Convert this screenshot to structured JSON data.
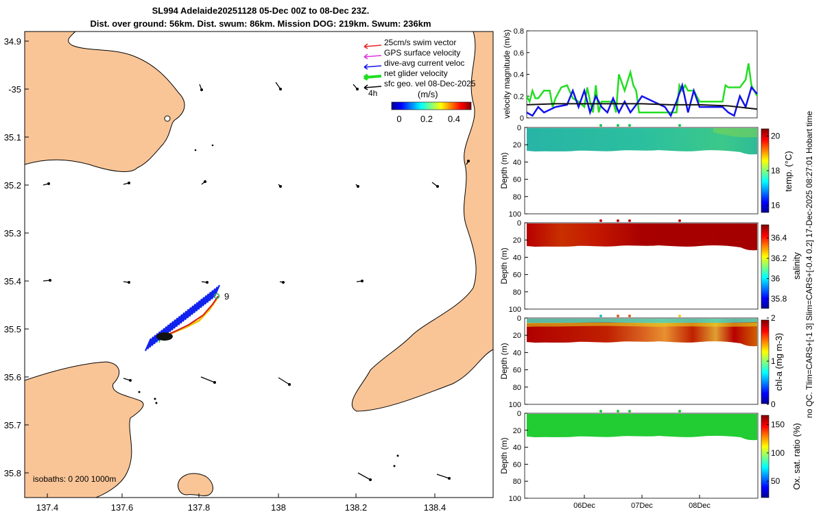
{
  "title_line1": "SL994 Adelaide20251128 05-Dec 00Z to 08-Dec 23Z.",
  "title_line2": "Dist. over ground: 56km. Dist. swum: 86km. Mission DOG: 219km. Swum: 236km",
  "map": {
    "lon_ticks": [
      "137.4",
      "137.6",
      "137.8",
      "138",
      "138.2",
      "138.4"
    ],
    "lat_ticks": [
      "34.9",
      "-35",
      "35.1",
      "35.2",
      "35.3",
      "35.4",
      "35.5",
      "35.6",
      "35.7",
      "35.8"
    ],
    "legend": [
      {
        "label": "25cm/s swim vector",
        "color": "#ee2222"
      },
      {
        "label": "GPS surface velocity",
        "color": "#dd33dd"
      },
      {
        "label": "dive-avg current veloc",
        "color": "#1111ee"
      },
      {
        "label": "net glider velocity",
        "color": "#22dd22"
      },
      {
        "label": "sfc geo. vel 08-Dec-2025",
        "color": "#000000"
      }
    ],
    "legend_extra": "4h",
    "colorbar_label": "(m/s)",
    "colorbar_ticks": [
      "0",
      "0.2",
      "0.4"
    ],
    "track_label": "9",
    "isobaths_label": "isobaths: 0   200  1000m",
    "land_color": "#f9c597"
  },
  "chart_data": [
    {
      "type": "line",
      "title": "",
      "ylabel": "velocity magnitude (m/s)",
      "ylim": [
        0,
        0.8
      ],
      "yticks": [
        "0",
        "0.2",
        "0.4",
        "0.6",
        "0.8"
      ],
      "x_range_days": [
        5.0,
        9.0
      ],
      "series": [
        {
          "name": "net glider velocity",
          "color": "#22dd22",
          "x": [
            5.0,
            5.05,
            5.1,
            5.15,
            5.2,
            5.3,
            5.4,
            5.45,
            5.5,
            5.6,
            5.7,
            5.8,
            5.9,
            6.0,
            6.05,
            6.1,
            6.15,
            6.2,
            6.25,
            6.3,
            6.4,
            6.5,
            6.55,
            6.6,
            6.7,
            6.8,
            6.85,
            6.9,
            6.95,
            7.0,
            7.2,
            7.4,
            7.5,
            7.6,
            7.65,
            7.7,
            7.75,
            7.8,
            7.9,
            8.0,
            8.2,
            8.4,
            8.45,
            8.5,
            8.6,
            8.7,
            8.8,
            8.85,
            8.9,
            9.0
          ],
          "y": [
            0.2,
            0.15,
            0.25,
            0.18,
            0.18,
            0.25,
            0.25,
            0.1,
            0.18,
            0.28,
            0.3,
            0.18,
            0.15,
            0.1,
            0.28,
            0.15,
            0.05,
            0.3,
            0.05,
            0.15,
            0.15,
            0.15,
            0.05,
            0.4,
            0.25,
            0.42,
            0.3,
            0.25,
            0.05,
            0.05,
            0.05,
            0.05,
            0.05,
            0.05,
            0.3,
            0.25,
            0.3,
            0.25,
            0.25,
            0.15,
            0.15,
            0.15,
            0.3,
            0.28,
            0.28,
            0.28,
            0.35,
            0.5,
            0.3,
            0.2
          ]
        },
        {
          "name": "dive-avg current veloc",
          "color": "#1111ee",
          "x": [
            5.0,
            5.1,
            5.2,
            5.3,
            5.5,
            5.7,
            5.8,
            5.9,
            6.0,
            6.1,
            6.2,
            6.3,
            6.4,
            6.5,
            6.6,
            6.7,
            6.8,
            6.9,
            7.0,
            7.2,
            7.4,
            7.5,
            7.6,
            7.7,
            7.8,
            7.9,
            8.0,
            8.2,
            8.4,
            8.5,
            8.6,
            8.7,
            8.8,
            8.9,
            9.0
          ],
          "y": [
            0.05,
            0.02,
            0.1,
            0.05,
            0.1,
            0.12,
            0.25,
            0.1,
            0.25,
            0.05,
            0.2,
            0.1,
            0.05,
            0.18,
            0.05,
            0.15,
            0.05,
            0.12,
            0.2,
            0.15,
            0.1,
            0.02,
            0.15,
            0.3,
            0.05,
            0.25,
            0.1,
            0.1,
            0.1,
            0.05,
            0.02,
            0.2,
            0.1,
            0.28,
            0.22
          ]
        },
        {
          "name": "sfc geo. vel",
          "color": "#111111",
          "x": [
            5.0,
            5.5,
            6.0,
            6.5,
            7.0,
            7.5,
            8.0,
            8.5,
            9.0
          ],
          "y": [
            0.12,
            0.13,
            0.13,
            0.13,
            0.13,
            0.12,
            0.12,
            0.11,
            0.08
          ]
        }
      ]
    },
    {
      "type": "heatmap",
      "ylabel": "Depth (m)",
      "ylim": [
        100,
        0
      ],
      "yticks": [
        "0",
        "20",
        "40",
        "60",
        "80",
        "100"
      ],
      "colorbar_label": "temp. (°C)",
      "colorbar_ticks": [
        "16",
        "18",
        "20"
      ],
      "clim": [
        15.5,
        20.5
      ]
    },
    {
      "type": "heatmap",
      "ylabel": "Depth (m)",
      "ylim": [
        100,
        0
      ],
      "yticks": [
        "0",
        "20",
        "40",
        "60",
        "80",
        "100"
      ],
      "colorbar_label": "salinity",
      "colorbar_ticks": [
        "35.8",
        "36",
        "36.2",
        "36.4"
      ],
      "clim": [
        35.7,
        36.55
      ]
    },
    {
      "type": "heatmap",
      "ylabel": "Depth (m)",
      "ylim": [
        100,
        0
      ],
      "yticks": [
        "0",
        "20",
        "40",
        "60",
        "80",
        "100"
      ],
      "colorbar_label": "chl-a (mg m-3)",
      "colorbar_ticks": [
        "0",
        "1",
        "2"
      ],
      "clim": [
        0,
        2
      ]
    },
    {
      "type": "heatmap",
      "ylabel": "Depth (m)",
      "ylim": [
        100,
        0
      ],
      "yticks": [
        "0",
        "20",
        "40",
        "60",
        "80",
        "100"
      ],
      "colorbar_label": "Ox. sat. ratio (%)",
      "colorbar_ticks": [
        "50",
        "100",
        "150"
      ],
      "clim": [
        20,
        170
      ]
    }
  ],
  "time_ticks": [
    "06Dec",
    "07Dec",
    "08Dec"
  ],
  "side_note": "no QC. Tlim=CARS+[-1 3] Slim=CARS+[-0.4 0.2] 17-Dec-2025 08:27:01 Hobart time"
}
